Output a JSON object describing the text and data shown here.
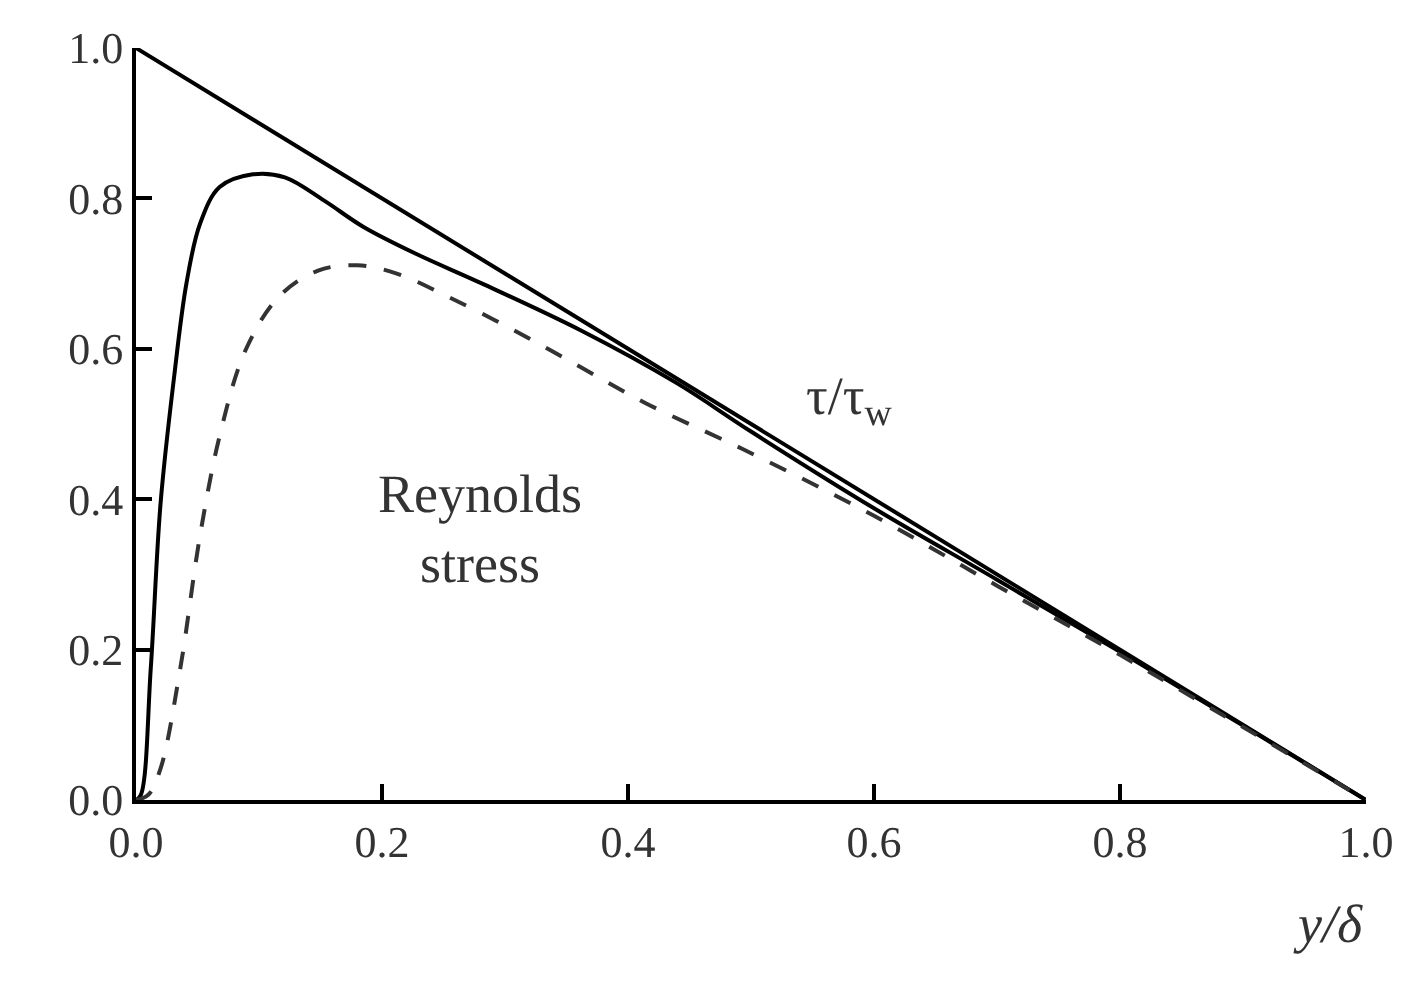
{
  "chart_data": {
    "type": "line",
    "xlabel": "y/δ",
    "xlim": [
      0,
      1
    ],
    "ylim": [
      0,
      1
    ],
    "xticks": [
      {
        "value": 0,
        "label": "0.0"
      },
      0.2,
      0.4,
      0.6,
      0.8,
      {
        "value": 1,
        "label": "1.0"
      }
    ],
    "yticks": [
      {
        "value": 0,
        "label": "0.0"
      },
      0.2,
      0.4,
      0.6,
      0.8,
      {
        "value": 1,
        "label": "1.0"
      }
    ],
    "marker": "none",
    "series": [
      {
        "color": "#000000",
        "line_style": "solid",
        "x": [
          0,
          1
        ],
        "values": [
          1,
          0
        ]
      },
      {
        "color": "#000000",
        "line_style": "solid",
        "x": [
          0,
          0.004,
          0.012,
          0.02,
          0.031,
          0.041,
          0.052,
          0.068,
          0.095,
          0.121,
          0.153,
          0.185,
          0.228,
          0.281,
          0.361,
          0.44,
          0.5,
          0.6,
          0.7,
          0.8,
          0.9,
          1.0
        ],
        "values": [
          0,
          0.007,
          0.175,
          0.395,
          0.563,
          0.687,
          0.766,
          0.815,
          0.832,
          0.828,
          0.797,
          0.762,
          0.726,
          0.687,
          0.625,
          0.554,
          0.49,
          0.388,
          0.293,
          0.197,
          0.099,
          0
        ]
      },
      {
        "color": "#333333",
        "line_style": "dashed",
        "x": [
          0,
          0.01,
          0.02,
          0.036,
          0.052,
          0.068,
          0.089,
          0.116,
          0.148,
          0.18,
          0.212,
          0.254,
          0.307,
          0.361,
          0.414,
          0.494,
          0.6,
          0.7,
          0.8,
          0.9,
          1.0
        ],
        "values": [
          0,
          0.007,
          0.042,
          0.175,
          0.351,
          0.484,
          0.598,
          0.669,
          0.704,
          0.711,
          0.7,
          0.669,
          0.625,
          0.576,
          0.528,
          0.466,
          0.378,
          0.285,
          0.193,
          0.097,
          0
        ]
      }
    ],
    "annotations": [
      "τ/τ$_{w}$",
      "Reynolds\nstress"
    ]
  }
}
